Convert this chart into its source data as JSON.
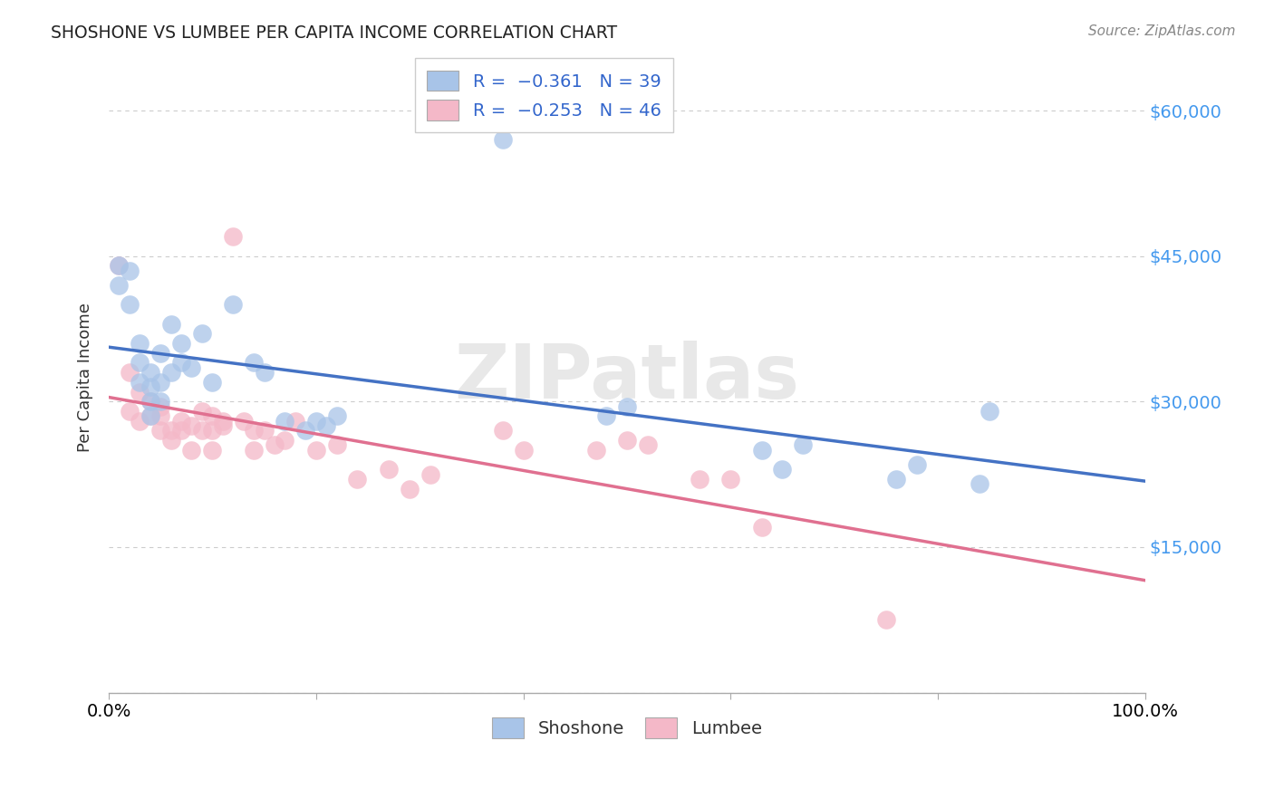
{
  "title": "SHOSHONE VS LUMBEE PER CAPITA INCOME CORRELATION CHART",
  "source": "Source: ZipAtlas.com",
  "ylabel": "Per Capita Income",
  "yticks": [
    0,
    15000,
    30000,
    45000,
    60000
  ],
  "ytick_labels": [
    "",
    "$15,000",
    "$30,000",
    "$45,000",
    "$60,000"
  ],
  "ylim": [
    0,
    65000
  ],
  "xlim": [
    0.0,
    1.0
  ],
  "shoshone_color": "#a8c4e8",
  "lumbee_color": "#f4b8c8",
  "line_blue": "#4472c4",
  "line_pink": "#e07090",
  "watermark_text": "ZIPatlas",
  "background_color": "#ffffff",
  "grid_color": "#cccccc",
  "shoshone_x": [
    0.01,
    0.01,
    0.02,
    0.02,
    0.03,
    0.03,
    0.03,
    0.04,
    0.04,
    0.04,
    0.04,
    0.05,
    0.05,
    0.05,
    0.06,
    0.06,
    0.07,
    0.07,
    0.08,
    0.09,
    0.1,
    0.12,
    0.14,
    0.15,
    0.17,
    0.19,
    0.2,
    0.21,
    0.22,
    0.38,
    0.48,
    0.5,
    0.63,
    0.65,
    0.67,
    0.76,
    0.78,
    0.84,
    0.85
  ],
  "shoshone_y": [
    44000,
    42000,
    40000,
    43500,
    36000,
    34000,
    32000,
    31500,
    33000,
    30000,
    28500,
    35000,
    32000,
    30000,
    38000,
    33000,
    36000,
    34000,
    33500,
    37000,
    32000,
    40000,
    34000,
    33000,
    28000,
    27000,
    28000,
    27500,
    28500,
    57000,
    28500,
    29500,
    25000,
    23000,
    25500,
    22000,
    23500,
    21500,
    29000
  ],
  "lumbee_x": [
    0.01,
    0.02,
    0.02,
    0.03,
    0.03,
    0.04,
    0.04,
    0.05,
    0.05,
    0.05,
    0.06,
    0.06,
    0.07,
    0.07,
    0.08,
    0.08,
    0.09,
    0.09,
    0.1,
    0.1,
    0.1,
    0.11,
    0.11,
    0.12,
    0.13,
    0.14,
    0.14,
    0.15,
    0.16,
    0.17,
    0.18,
    0.2,
    0.22,
    0.24,
    0.27,
    0.29,
    0.31,
    0.38,
    0.4,
    0.47,
    0.5,
    0.52,
    0.57,
    0.6,
    0.63,
    0.75
  ],
  "lumbee_y": [
    44000,
    33000,
    29000,
    31000,
    28000,
    30000,
    28500,
    27000,
    28500,
    29500,
    27000,
    26000,
    28000,
    27000,
    27500,
    25000,
    27000,
    29000,
    28500,
    27000,
    25000,
    27500,
    28000,
    47000,
    28000,
    27000,
    25000,
    27000,
    25500,
    26000,
    28000,
    25000,
    25500,
    22000,
    23000,
    21000,
    22500,
    27000,
    25000,
    25000,
    26000,
    25500,
    22000,
    22000,
    17000,
    7500
  ]
}
